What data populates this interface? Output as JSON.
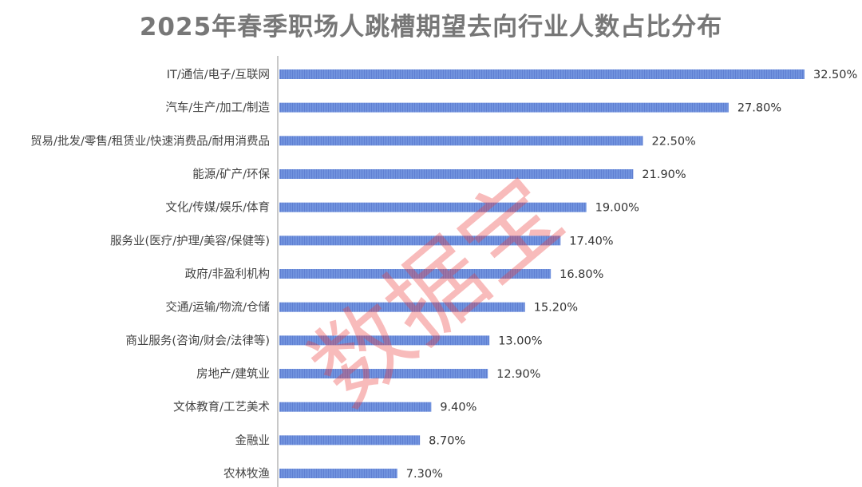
{
  "chart_data": {
    "type": "bar",
    "orientation": "horizontal",
    "title": "2025年春季职场人跳槽期望去向行业人数占比分布",
    "categories": [
      "IT/通信/电子/互联网",
      "汽车/生产/加工/制造",
      "贸易/批发/零售/租赁业/快速消费品/耐用消费品",
      "能源/矿产/环保",
      "文化/传媒/娱乐/体育",
      "服务业(医疗/护理/美容/保健等)",
      "政府/非盈利机构",
      "交通/运输/物流/仓储",
      "商业服务(咨询/财会/法律等)",
      "房地产/建筑业",
      "文体教育/工艺美术",
      "金融业",
      "农林牧渔"
    ],
    "values": [
      32.5,
      27.8,
      22.5,
      21.9,
      19.0,
      17.4,
      16.8,
      15.2,
      13.0,
      12.9,
      9.4,
      8.7,
      7.3
    ],
    "value_labels": [
      "32.50%",
      "27.80%",
      "22.50%",
      "21.90%",
      "19.00%",
      "17.40%",
      "16.80%",
      "15.20%",
      "13.00%",
      "12.90%",
      "9.40%",
      "8.70%",
      "7.30%"
    ],
    "unit": "%",
    "xlim": [
      0,
      32.5
    ],
    "grid": false,
    "bar_color": "#6f8fdc",
    "watermark": "数据宝"
  }
}
